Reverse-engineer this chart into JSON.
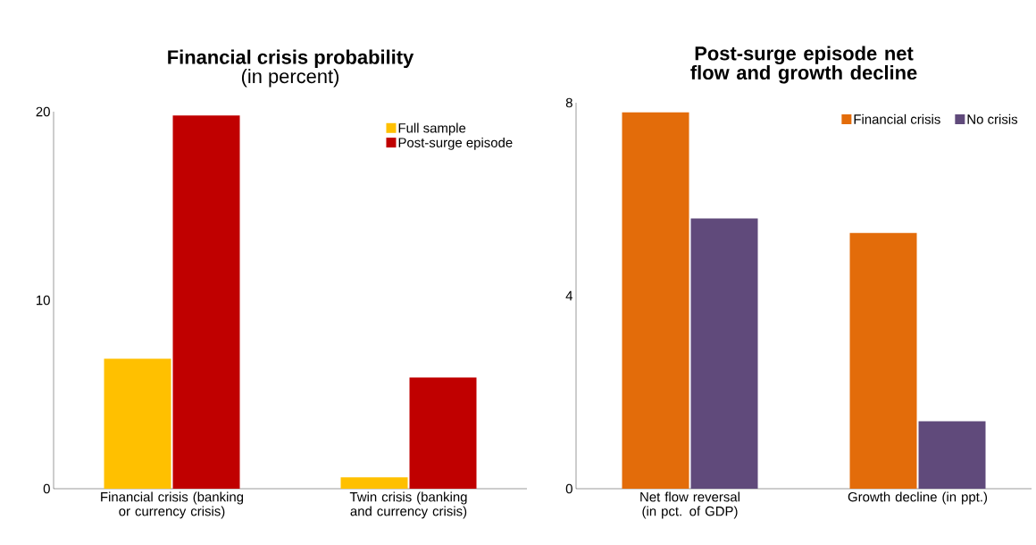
{
  "chart_data": [
    {
      "type": "bar",
      "title": "**Financial crisis probability**",
      "subtitle": "(in percent)",
      "categories": [
        "Financial crisis (banking or currency crisis)",
        "Twin crisis (banking and currency crisis)"
      ],
      "series": [
        {
          "name": "Full sample",
          "color": "#ffc000",
          "values": [
            6.9,
            0.6
          ]
        },
        {
          "name": "Post-surge episode",
          "color": "#c00000",
          "values": [
            19.8,
            5.9
          ]
        }
      ],
      "ylim": [
        0,
        20
      ],
      "yticks": [
        0,
        10,
        20
      ],
      "legend": "top right"
    },
    {
      "type": "bar",
      "title": "**Post-surge episode net flow and growth decline**",
      "categories": [
        "Net flow reversal (in pct. of GDP)",
        "Growth decline (in ppt.)"
      ],
      "series": [
        {
          "name": "Financial crisis",
          "color": "#e36c0a",
          "values": [
            7.8,
            5.3
          ]
        },
        {
          "name": "No crisis",
          "color": "#604a7b",
          "values": [
            5.6,
            1.4
          ]
        }
      ],
      "ylim": [
        0,
        8
      ],
      "yticks": [
        0,
        4,
        8
      ],
      "legend": "top right"
    }
  ]
}
